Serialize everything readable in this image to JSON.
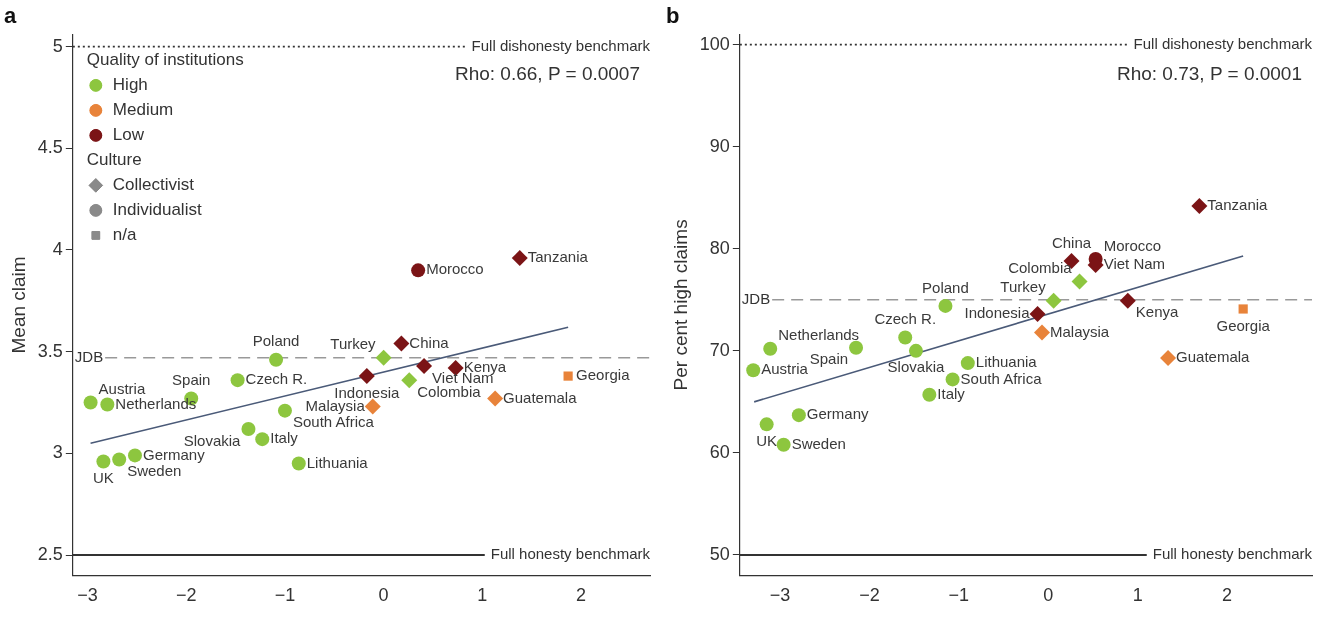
{
  "chart_data": [
    {
      "type": "scatter",
      "title": "a",
      "ylabel": "Mean claim",
      "xlim": [
        -3.15,
        2.7
      ],
      "xticks": [
        -3,
        -2,
        -1,
        0,
        1,
        2
      ],
      "ylim": [
        2.4,
        5.06
      ],
      "yticks": [
        2.5,
        3,
        3.5,
        4,
        4.5,
        5
      ],
      "legend": "top left",
      "legend_title": [
        "Quality of institutions",
        "Culture"
      ],
      "series": [
        {
          "color": "#8dc63f",
          "marker": "circle",
          "x": [
            -2.97,
            -2.8,
            -1.95,
            -1.48,
            -1.09,
            -1.37,
            -1.23,
            -1.0,
            -0.86,
            -2.84,
            -2.68,
            -2.52
          ],
          "values": [
            3.25,
            3.24,
            3.27,
            3.36,
            3.46,
            3.12,
            3.07,
            3.21,
            2.95,
            2.96,
            2.97,
            2.99
          ]
        },
        {
          "color": "#8dc63f",
          "marker": "diamond",
          "x": [
            0.0,
            0.26
          ],
          "values": [
            3.47,
            3.36
          ]
        },
        {
          "color": "#e8833a",
          "marker": "diamond",
          "x": [
            -0.11,
            1.13
          ],
          "values": [
            3.23,
            3.27
          ]
        },
        {
          "color": "#e8833a",
          "marker": "square",
          "x": [
            1.87
          ],
          "values": [
            3.38
          ]
        },
        {
          "color": "#7b1416",
          "marker": "diamond",
          "x": [
            0.18,
            -0.17,
            0.41,
            0.73,
            1.38
          ],
          "values": [
            3.54,
            3.38,
            3.43,
            3.42,
            3.96
          ]
        },
        {
          "color": "#7b1416",
          "marker": "circle",
          "x": [
            0.35
          ],
          "values": [
            3.9
          ]
        },
        {
          "type": "line",
          "color": "#4a5a78",
          "marker": "none",
          "line_style": "solid",
          "x": [
            -2.97,
            1.87
          ],
          "values": [
            3.05,
            3.62
          ]
        },
        {
          "name": "High",
          "color": "#8dc63f",
          "marker": "circle"
        },
        {
          "name": "Medium",
          "color": "#e8833a",
          "marker": "circle"
        },
        {
          "name": "Low",
          "color": "#7b1416",
          "marker": "circle"
        },
        {
          "name": "Collectivist",
          "color": "#8a8a8a",
          "marker": "diamond"
        },
        {
          "name": "Individualist",
          "color": "#8a8a8a",
          "marker": "circle"
        },
        {
          "name": "n/a",
          "color": "#8a8a8a",
          "marker": "square"
        }
      ],
      "ref_lines": [
        {
          "axis": "y",
          "value": 5,
          "label": "Full dishonesty benchmark",
          "line_style": "dotted",
          "color": "#333333"
        },
        {
          "axis": "y",
          "value": 3.47,
          "label": "JDB",
          "line_style": "dashed",
          "color": "#999999"
        },
        {
          "axis": "y",
          "value": 2.5,
          "label": "Full honesty benchmark",
          "line_style": "solid",
          "color": "#333333"
        }
      ],
      "annotations": [
        "Rho: 0.66, P = 0.0007",
        {
          "text": "Austria",
          "x": -2.97,
          "y": 3.25
        },
        {
          "text": "Netherlands",
          "x": -2.8,
          "y": 3.24
        },
        {
          "text": "Spain",
          "x": -1.95,
          "y": 3.27
        },
        {
          "text": "Czech R.",
          "x": -1.48,
          "y": 3.36
        },
        {
          "text": "Poland",
          "x": -1.09,
          "y": 3.46
        },
        {
          "text": "Slovakia",
          "x": -1.37,
          "y": 3.12
        },
        {
          "text": "Italy",
          "x": -1.23,
          "y": 3.07
        },
        {
          "text": "South Africa",
          "x": -1.0,
          "y": 3.21
        },
        {
          "text": "Lithuania",
          "x": -0.86,
          "y": 2.95
        },
        {
          "text": "UK",
          "x": -2.84,
          "y": 2.96
        },
        {
          "text": "Sweden",
          "x": -2.68,
          "y": 2.97
        },
        {
          "text": "Germany",
          "x": -2.52,
          "y": 2.99
        },
        {
          "text": "Turkey",
          "x": 0.0,
          "y": 3.47
        },
        {
          "text": "Colombia",
          "x": 0.26,
          "y": 3.36
        },
        {
          "text": "Malaysia",
          "x": -0.11,
          "y": 3.23
        },
        {
          "text": "Guatemala",
          "x": 1.13,
          "y": 3.27
        },
        {
          "text": "Georgia",
          "x": 1.87,
          "y": 3.38
        },
        {
          "text": "China",
          "x": 0.18,
          "y": 3.54
        },
        {
          "text": "Indonesia",
          "x": -0.17,
          "y": 3.38
        },
        {
          "text": "Viet Nam",
          "x": 0.41,
          "y": 3.43
        },
        {
          "text": "Kenya",
          "x": 0.73,
          "y": 3.42
        },
        {
          "text": "Tanzania",
          "x": 1.38,
          "y": 3.96
        },
        {
          "text": "Morocco",
          "x": 0.35,
          "y": 3.9
        }
      ]
    },
    {
      "type": "scatter",
      "title": "b",
      "ylabel": "Per cent high claims",
      "xlim": [
        -3.45,
        2.95
      ],
      "xticks": [
        -3,
        -2,
        -1,
        0,
        1,
        2
      ],
      "ylim": [
        48,
        101
      ],
      "yticks": [
        50,
        60,
        70,
        80,
        90,
        100
      ],
      "series": [
        {
          "color": "#8dc63f",
          "marker": "circle",
          "x": [
            -3.3,
            -3.11,
            -2.15,
            -1.6,
            -1.15,
            -1.48,
            -1.33,
            -1.07,
            -0.9,
            -3.15,
            -2.96,
            -2.79
          ],
          "values": [
            68.1,
            70.2,
            70.3,
            71.3,
            74.4,
            70.0,
            65.7,
            67.2,
            68.8,
            62.8,
            60.8,
            63.7
          ]
        },
        {
          "color": "#8dc63f",
          "marker": "diamond",
          "x": [
            0.06,
            0.35
          ],
          "values": [
            74.9,
            76.8
          ]
        },
        {
          "color": "#e8833a",
          "marker": "diamond",
          "x": [
            -0.07,
            1.34
          ],
          "values": [
            71.8,
            69.3
          ]
        },
        {
          "color": "#e8833a",
          "marker": "square",
          "x": [
            2.18
          ],
          "values": [
            74.1
          ]
        },
        {
          "color": "#7b1416",
          "marker": "diamond",
          "x": [
            0.26,
            -0.12,
            0.53,
            0.89,
            1.69
          ],
          "values": [
            78.8,
            73.6,
            78.4,
            74.9,
            84.2
          ]
        },
        {
          "color": "#7b1416",
          "marker": "circle",
          "x": [
            0.53
          ],
          "values": [
            79.0
          ]
        },
        {
          "type": "line",
          "color": "#4a5a78",
          "marker": "none",
          "line_style": "solid",
          "x": [
            -3.29,
            2.18
          ],
          "values": [
            65.0,
            79.3
          ]
        }
      ],
      "ref_lines": [
        {
          "axis": "y",
          "value": 100,
          "label": "Full dishonesty benchmark",
          "line_style": "dotted",
          "color": "#333333"
        },
        {
          "axis": "y",
          "value": 75,
          "label": "JDB",
          "line_style": "dashed",
          "color": "#999999"
        },
        {
          "axis": "y",
          "value": 50,
          "label": "Full honesty benchmark",
          "line_style": "solid",
          "color": "#333333"
        }
      ],
      "annotations": [
        "Rho: 0.73, P = 0.0001",
        {
          "text": "Austria",
          "x": -3.3,
          "y": 68.1
        },
        {
          "text": "Netherlands",
          "x": -3.11,
          "y": 70.2
        },
        {
          "text": "Spain",
          "x": -2.15,
          "y": 70.3
        },
        {
          "text": "Czech R.",
          "x": -1.6,
          "y": 71.3
        },
        {
          "text": "Poland",
          "x": -1.15,
          "y": 74.4
        },
        {
          "text": "Slovakia",
          "x": -1.48,
          "y": 70.0
        },
        {
          "text": "Italy",
          "x": -1.33,
          "y": 65.7
        },
        {
          "text": "South Africa",
          "x": -1.07,
          "y": 67.2
        },
        {
          "text": "Lithuania",
          "x": -0.9,
          "y": 68.8
        },
        {
          "text": "UK",
          "x": -3.15,
          "y": 62.8
        },
        {
          "text": "Sweden",
          "x": -2.96,
          "y": 60.8
        },
        {
          "text": "Germany",
          "x": -2.79,
          "y": 63.7
        },
        {
          "text": "Turkey",
          "x": 0.06,
          "y": 74.9
        },
        {
          "text": "Colombia",
          "x": 0.35,
          "y": 76.8
        },
        {
          "text": "Malaysia",
          "x": -0.07,
          "y": 71.8
        },
        {
          "text": "Guatemala",
          "x": 1.34,
          "y": 69.3
        },
        {
          "text": "Georgia",
          "x": 2.18,
          "y": 74.1
        },
        {
          "text": "China",
          "x": 0.26,
          "y": 78.8
        },
        {
          "text": "Indonesia",
          "x": -0.12,
          "y": 73.6
        },
        {
          "text": "Viet Nam",
          "x": 0.53,
          "y": 78.4
        },
        {
          "text": "Kenya",
          "x": 0.89,
          "y": 74.9
        },
        {
          "text": "Tanzania",
          "x": 1.69,
          "y": 84.2
        },
        {
          "text": "Morocco",
          "x": 0.53,
          "y": 79.0
        }
      ]
    }
  ]
}
